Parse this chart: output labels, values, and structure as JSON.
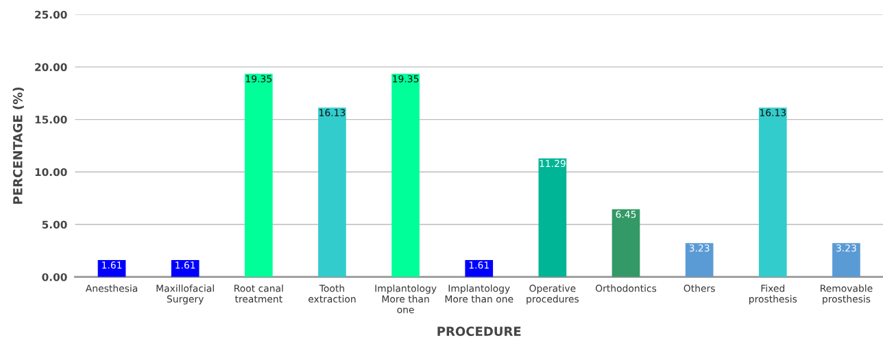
{
  "chart_data": {
    "type": "bar",
    "xlabel": "PROCEDURE",
    "ylabel": "PERCENTAGE (%)",
    "categories": [
      "Anesthesia",
      "Maxillofacial\nSurgery",
      "Root canal\ntreatment",
      "Tooth\nextraction",
      "Implantology\nMore than\none",
      "Implantology\nMore than one",
      "Operative\nprocedures",
      "Orthodontics",
      "Others",
      "Fixed\nprosthesis",
      "Removable\nprosthesis"
    ],
    "values": [
      1.61,
      1.61,
      19.35,
      16.13,
      19.35,
      1.61,
      11.29,
      6.45,
      3.23,
      16.13,
      3.23
    ],
    "colors": [
      "#0000ff",
      "#0000ff",
      "#00ff99",
      "#33cccc",
      "#00ff99",
      "#0000ff",
      "#00b596",
      "#339966",
      "#5b9bd5",
      "#33cccc",
      "#5b9bd5"
    ],
    "ylim": [
      0,
      25
    ],
    "yticks": [
      {
        "value": 0,
        "label": "0.00"
      },
      {
        "value": 5,
        "label": "5.00"
      },
      {
        "value": 10,
        "label": "10.00"
      },
      {
        "value": 15,
        "label": "15.00"
      },
      {
        "value": 20,
        "label": "20.00"
      },
      {
        "value": 25,
        "label": "25.00"
      }
    ],
    "grid": "y",
    "data_labels": true
  }
}
